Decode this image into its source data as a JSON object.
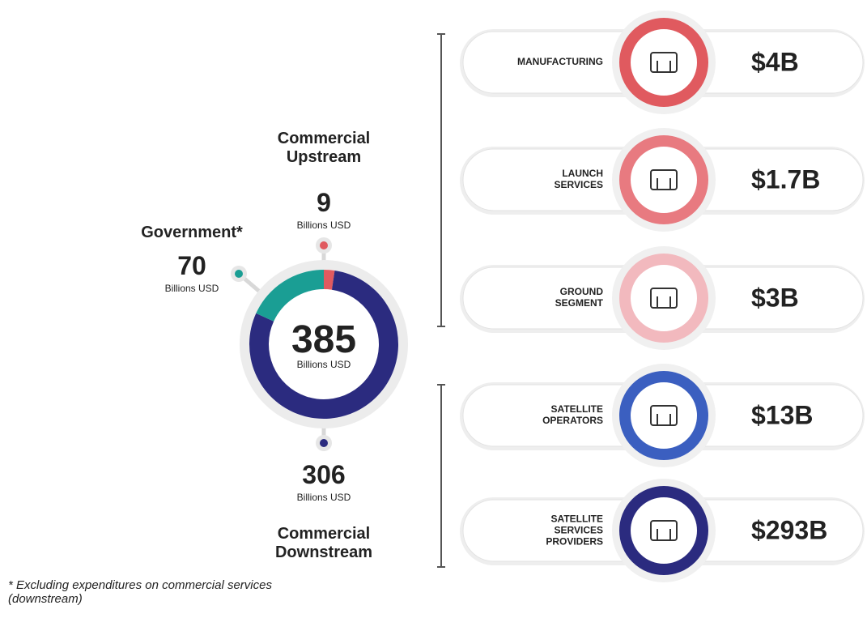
{
  "chart_data": {
    "type": "donut",
    "categories": [
      "Commercial Upstream",
      "Commercial Downstream",
      "Government*"
    ],
    "values": [
      9,
      306,
      70
    ],
    "colors": [
      "#e05a5f",
      "#2b2b7f",
      "#1a9e94"
    ],
    "total": 385,
    "unit": "Billions USD",
    "footnote": "* Excluding expenditures on commercial services (downstream)"
  },
  "value_chain": [
    {
      "label": "MANUFACTURING",
      "value": "$4B",
      "color": "#e05a5f"
    },
    {
      "label": "LAUNCH SERVICES",
      "value": "$1.7B",
      "color": "#e87a80"
    },
    {
      "label": "GROUND SEGMENT",
      "value": "$3B",
      "color": "#f2b9be"
    },
    {
      "label": "SATELLITE OPERATORS",
      "value": "$13B",
      "color": "#3b5fc0"
    },
    {
      "label": "SATELLITE SERVICES PROVIDERS",
      "value": "$293B",
      "color": "#2b2b7f"
    }
  ]
}
